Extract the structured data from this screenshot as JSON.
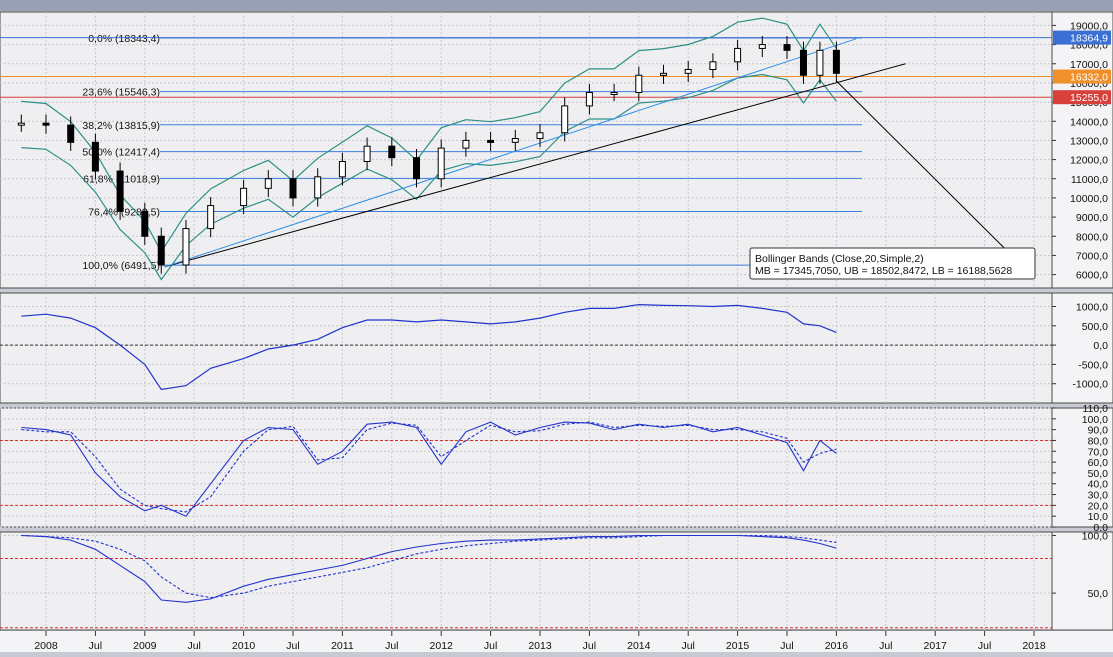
{
  "colors": {
    "background": "#efeff1",
    "grid": "#c6c8ce",
    "price_line": "#000000",
    "fib_line": "#3b7ddd",
    "trend_blue": "#2f8fe8",
    "band": "#2d8f86",
    "indicator": "#2233cc",
    "threshold": "#d9302c",
    "frame": "#4a4a4a"
  },
  "chart_data": [
    {
      "type": "line",
      "panel": "price",
      "subtype": "candlestick",
      "x": [
        "2007-10",
        "2008-01",
        "2008-04",
        "2008-07",
        "2008-10",
        "2009-01",
        "2009-03",
        "2009-06",
        "2009-09",
        "2010-01",
        "2010-04",
        "2010-07",
        "2010-10",
        "2011-01",
        "2011-04",
        "2011-07",
        "2011-10",
        "2012-01",
        "2012-04",
        "2012-07",
        "2012-10",
        "2013-01",
        "2013-04",
        "2013-07",
        "2013-10",
        "2014-01",
        "2014-04",
        "2014-07",
        "2014-10",
        "2015-01",
        "2015-04",
        "2015-07",
        "2015-09",
        "2015-11",
        "2016-01"
      ],
      "series": [
        {
          "values": [
            13900,
            13800,
            12900,
            11400,
            9300,
            8000,
            6500,
            8400,
            9600,
            10500,
            11000,
            10000,
            11100,
            11900,
            12700,
            12100,
            11000,
            12600,
            13000,
            12900,
            13100,
            13400,
            14800,
            15500,
            15500,
            16400,
            16500,
            16700,
            17100,
            17800,
            18000,
            17700,
            16400,
            17700,
            16500
          ]
        }
      ],
      "y_axis_ticks": [
        "19000,0",
        "18000,0",
        "17000,0",
        "16000,0",
        "15000,0",
        "14000,0",
        "13000,0",
        "12000,0",
        "11000,0",
        "10000,0",
        "9000,0",
        "8000,0",
        "7000,0",
        "6000,0"
      ],
      "ylim": [
        5300,
        19700
      ],
      "grid": true,
      "fibonacci_levels": [
        {
          "label": "0,0% (18343,4)",
          "value": 18343.4
        },
        {
          "label": "23,6% (15546,3)",
          "value": 15546.3
        },
        {
          "label": "38,2% (13815,9)",
          "value": 13815.9
        },
        {
          "label": "50,0% (12417,4)",
          "value": 12417.4
        },
        {
          "label": "61,8% (11018,9)",
          "value": 11018.9
        },
        {
          "label": "76,4% (9288,5)",
          "value": 9288.5
        },
        {
          "label": "100,0% (6491,5)",
          "value": 6491.5
        }
      ],
      "price_tags": [
        {
          "label": "18364,9",
          "value": 18364.9,
          "color": "#3b6fd4"
        },
        {
          "label": "16332,0",
          "value": 16332.0,
          "color": "#f0902a"
        },
        {
          "label": "15255,0",
          "value": 15255.0,
          "color": "#d8403a"
        }
      ],
      "annotation": {
        "title": "Bollinger Bands (Close,20,Simple,2)",
        "text": "MB = 17345,7050, UB = 18502,8472, LB = 16188,5628",
        "position": "bottom-right"
      }
    },
    {
      "type": "line",
      "panel": "oscillator",
      "x": [
        "2007-10",
        "2008-01",
        "2008-04",
        "2008-07",
        "2008-10",
        "2009-01",
        "2009-03",
        "2009-06",
        "2009-09",
        "2010-01",
        "2010-04",
        "2010-07",
        "2010-10",
        "2011-01",
        "2011-04",
        "2011-07",
        "2011-10",
        "2012-01",
        "2012-04",
        "2012-07",
        "2012-10",
        "2013-01",
        "2013-04",
        "2013-07",
        "2013-10",
        "2014-01",
        "2014-04",
        "2014-07",
        "2014-10",
        "2015-01",
        "2015-04",
        "2015-07",
        "2015-09",
        "2015-11",
        "2016-01"
      ],
      "series": [
        {
          "values": [
            750,
            800,
            700,
            450,
            0,
            -500,
            -1150,
            -1050,
            -600,
            -350,
            -100,
            0,
            150,
            450,
            650,
            650,
            600,
            650,
            600,
            550,
            600,
            700,
            850,
            950,
            950,
            1050,
            1030,
            1020,
            1000,
            1030,
            950,
            850,
            550,
            500,
            330
          ]
        }
      ],
      "y_axis_ticks": [
        "1000,0",
        "500,0",
        "0,0",
        "-500,0",
        "-1000,0"
      ],
      "ylim": [
        -1500,
        1350
      ],
      "zero_line": true,
      "grid": true
    },
    {
      "type": "line",
      "panel": "stochastic",
      "x": [
        "2007-10",
        "2008-01",
        "2008-04",
        "2008-07",
        "2008-10",
        "2009-01",
        "2009-03",
        "2009-06",
        "2009-09",
        "2010-01",
        "2010-04",
        "2010-07",
        "2010-10",
        "2011-01",
        "2011-04",
        "2011-07",
        "2011-10",
        "2012-01",
        "2012-04",
        "2012-07",
        "2012-10",
        "2013-01",
        "2013-04",
        "2013-07",
        "2013-10",
        "2014-01",
        "2014-04",
        "2014-07",
        "2014-10",
        "2015-01",
        "2015-04",
        "2015-07",
        "2015-09",
        "2015-11",
        "2016-01"
      ],
      "series": [
        {
          "values": [
            92,
            90,
            85,
            50,
            28,
            15,
            20,
            10,
            40,
            80,
            92,
            90,
            58,
            70,
            95,
            97,
            92,
            58,
            88,
            97,
            85,
            92,
            97,
            96,
            90,
            95,
            92,
            95,
            88,
            92,
            85,
            78,
            52,
            80,
            68
          ]
        },
        {
          "values": [
            90,
            88,
            88,
            65,
            35,
            20,
            17,
            14,
            28,
            70,
            90,
            93,
            62,
            64,
            90,
            96,
            94,
            65,
            80,
            94,
            88,
            89,
            95,
            97,
            92,
            94,
            93,
            94,
            90,
            90,
            88,
            82,
            60,
            68,
            72
          ]
        }
      ],
      "y_axis_ticks": [
        "110,0",
        "100,0",
        "90,0",
        "80,0",
        "70,0",
        "60,0",
        "50,0",
        "40,0",
        "30,0",
        "20,0",
        "10,0",
        "0,0"
      ],
      "ylim": [
        0,
        110
      ],
      "thresholds": [
        80,
        20
      ],
      "grid": true
    },
    {
      "type": "line",
      "panel": "rsi",
      "x": [
        "2007-10",
        "2008-01",
        "2008-04",
        "2008-07",
        "2008-10",
        "2009-01",
        "2009-03",
        "2009-06",
        "2009-09",
        "2010-01",
        "2010-04",
        "2010-07",
        "2010-10",
        "2011-01",
        "2011-04",
        "2011-07",
        "2011-10",
        "2012-01",
        "2012-04",
        "2012-07",
        "2012-10",
        "2013-01",
        "2013-04",
        "2013-07",
        "2013-10",
        "2014-01",
        "2014-04",
        "2014-07",
        "2014-10",
        "2015-01",
        "2015-04",
        "2015-07",
        "2015-09",
        "2015-11",
        "2016-01"
      ],
      "series": [
        {
          "values": [
            100,
            99,
            96,
            88,
            74,
            60,
            44,
            42,
            45,
            56,
            62,
            66,
            70,
            74,
            80,
            86,
            90,
            93,
            95,
            96,
            96,
            97,
            98,
            99,
            99,
            100,
            100,
            100,
            100,
            100,
            99,
            98,
            96,
            93,
            89
          ]
        },
        {
          "values": [
            100,
            99,
            98,
            95,
            88,
            78,
            64,
            50,
            46,
            50,
            56,
            60,
            64,
            68,
            72,
            78,
            84,
            88,
            91,
            93,
            95,
            96,
            97,
            98,
            98,
            99,
            100,
            100,
            100,
            100,
            100,
            99,
            98,
            96,
            94
          ]
        }
      ],
      "y_axis_ticks": [
        "100,0",
        "50,0"
      ],
      "ylim": [
        18,
        103
      ],
      "thresholds": [
        80,
        20
      ],
      "grid": true
    }
  ],
  "x_axis_labels": [
    "l",
    "2008",
    "Jul",
    "2009",
    "Jul",
    "2010",
    "Jul",
    "2011",
    "Jul",
    "2012",
    "Jul",
    "2013",
    "Jul",
    "2014",
    "Jul",
    "2015",
    "Jul",
    "2016",
    "Jul",
    "2017",
    "Jul",
    "2018"
  ]
}
